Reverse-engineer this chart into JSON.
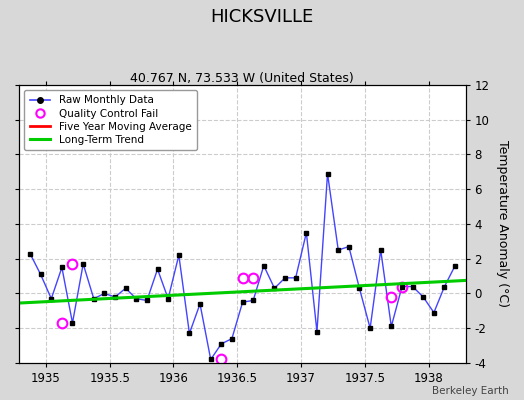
{
  "title": "HICKSVILLE",
  "subtitle": "40.767 N, 73.533 W (United States)",
  "ylabel": "Temperature Anomaly (°C)",
  "credit": "Berkeley Earth",
  "xlim": [
    1934.79,
    1938.29
  ],
  "ylim": [
    -4,
    12
  ],
  "yticks": [
    -4,
    -2,
    0,
    2,
    4,
    6,
    8,
    10,
    12
  ],
  "xticks": [
    1935,
    1935.5,
    1936,
    1936.5,
    1937,
    1937.5,
    1938
  ],
  "xtick_labels": [
    "1935",
    "1935.5",
    "1936",
    "1936.5",
    "1937",
    "1937.5",
    "1938"
  ],
  "figure_bg": "#d8d8d8",
  "plot_bg": "#ffffff",
  "raw_x": [
    1934.875,
    1934.958,
    1935.042,
    1935.125,
    1935.208,
    1935.292,
    1935.375,
    1935.458,
    1935.542,
    1935.625,
    1935.708,
    1935.792,
    1935.875,
    1935.958,
    1936.042,
    1936.125,
    1936.208,
    1936.292,
    1936.375,
    1936.458,
    1936.542,
    1936.625,
    1936.708,
    1936.792,
    1936.875,
    1936.958,
    1937.042,
    1937.125,
    1937.208,
    1937.292,
    1937.375,
    1937.458,
    1937.542,
    1937.625,
    1937.708,
    1937.792,
    1937.875,
    1937.958,
    1938.042,
    1938.125,
    1938.208
  ],
  "raw_y": [
    2.3,
    1.1,
    -0.3,
    1.5,
    -1.7,
    1.7,
    -0.3,
    0.0,
    -0.2,
    0.3,
    -0.3,
    -0.4,
    1.4,
    -0.3,
    2.2,
    -2.3,
    -0.6,
    -3.8,
    -2.9,
    -2.6,
    -0.5,
    -0.4,
    1.6,
    0.3,
    0.9,
    0.9,
    3.5,
    -2.2,
    6.9,
    2.5,
    2.7,
    0.3,
    -2.0,
    2.5,
    -1.9,
    0.4,
    0.4,
    -0.2,
    -1.1,
    0.4,
    1.6
  ],
  "qc_fail_x": [
    1935.125,
    1935.208,
    1936.375,
    1936.542,
    1936.625,
    1937.708,
    1937.792
  ],
  "qc_fail_y": [
    -1.7,
    1.7,
    -3.8,
    0.9,
    0.9,
    -0.2,
    0.4
  ],
  "trend_x": [
    1934.79,
    1938.29
  ],
  "trend_y": [
    -0.55,
    0.75
  ],
  "raw_color": "#4444ff",
  "raw_marker_color": "#000000",
  "qc_color": "#ff00ff",
  "trend_color": "#00cc00",
  "mavg_color": "#ff0000",
  "grid_color": "#cccccc",
  "spine_color": "#000000",
  "title_fontsize": 13,
  "subtitle_fontsize": 9,
  "tick_fontsize": 8.5,
  "ylabel_fontsize": 9
}
